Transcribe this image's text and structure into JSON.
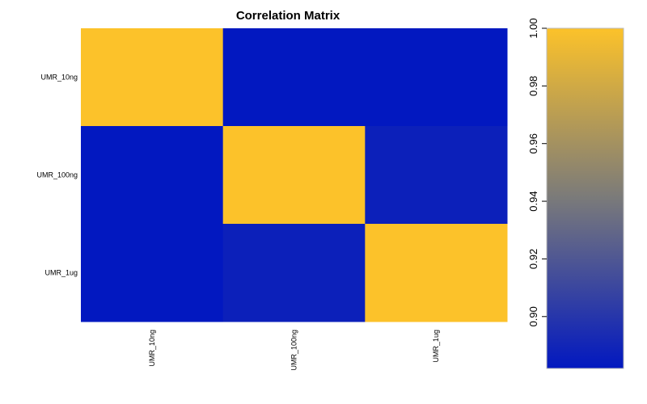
{
  "chart_data": {
    "type": "heatmap",
    "title": "Correlation Matrix",
    "rows": [
      "UMR_10ng",
      "UMR_100ng",
      "UMR_1ug"
    ],
    "columns": [
      "UMR_10ng",
      "UMR_100ng",
      "UMR_1ug"
    ],
    "values": [
      [
        1.0,
        0.882,
        0.882
      ],
      [
        0.882,
        1.0,
        0.887
      ],
      [
        0.882,
        0.887,
        1.0
      ]
    ],
    "colorbar": {
      "min": 0.882,
      "max": 1.0,
      "ticks": [
        0.9,
        0.92,
        0.94,
        0.96,
        0.98,
        1.0
      ],
      "tick_labels": [
        "0.90",
        "0.92",
        "0.94",
        "0.96",
        "0.98",
        "1.00"
      ],
      "colors": [
        "#0218c0",
        "#7a7a7a",
        "#fcc22a"
      ]
    },
    "legend_position": "right"
  }
}
